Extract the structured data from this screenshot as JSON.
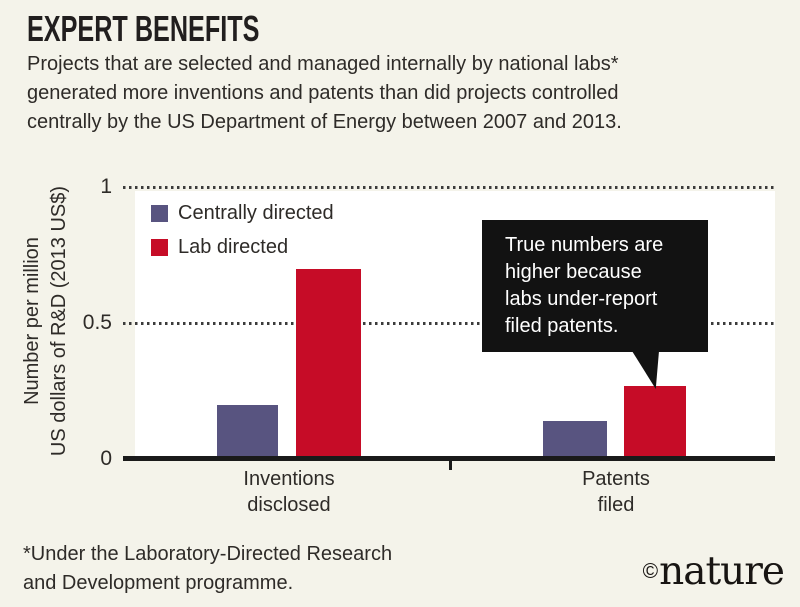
{
  "header": {
    "title": "EXPERT BENEFITS",
    "subtitle_lines": [
      "Projects that are selected and managed internally by national labs*",
      "generated more inventions and patents than did projects controlled",
      "centrally by the US Department of Energy between 2007 and 2013."
    ]
  },
  "chart_data": {
    "type": "bar",
    "categories": [
      "Inventions disclosed",
      "Patents filed"
    ],
    "category_label_lines": [
      [
        "Inventions",
        "disclosed"
      ],
      [
        "Patents",
        "filed"
      ]
    ],
    "series": [
      {
        "name": "Centrally directed",
        "color": "#585480",
        "values": [
          0.2,
          0.14
        ]
      },
      {
        "name": "Lab directed",
        "color": "#c60c27",
        "values": [
          0.7,
          0.27
        ]
      }
    ],
    "ylabel_lines": [
      "Number per million",
      "US dollars of R&D (2013 US$)"
    ],
    "yticks": [
      {
        "label": "1",
        "value": 1,
        "grid": true
      },
      {
        "label": "0.5",
        "value": 0.5,
        "grid": true
      },
      {
        "label": "0",
        "value": 0,
        "grid": false
      }
    ],
    "ylim": [
      0,
      1
    ],
    "grid": "horizontal dotted lines at 0.5 and 1",
    "legend_position": "top-left inside plot",
    "annotation": {
      "text_lines": [
        "True numbers are",
        "higher because",
        "labs under-report",
        "filed patents."
      ],
      "target": "Lab directed bar of Patents filed"
    }
  },
  "footer": {
    "footnote_lines": [
      "*Under the Laboratory-Directed Research",
      "and Development programme."
    ],
    "brand_copyright": "©",
    "brand_name": "nature"
  },
  "colors": {
    "page_background": "#f4f3ea",
    "plot_background": "#ffffff",
    "centrally_directed": "#585480",
    "lab_directed": "#c60c27",
    "axis_black": "#1a1a1a",
    "callout_background": "#121212",
    "callout_text": "#ffffff"
  }
}
